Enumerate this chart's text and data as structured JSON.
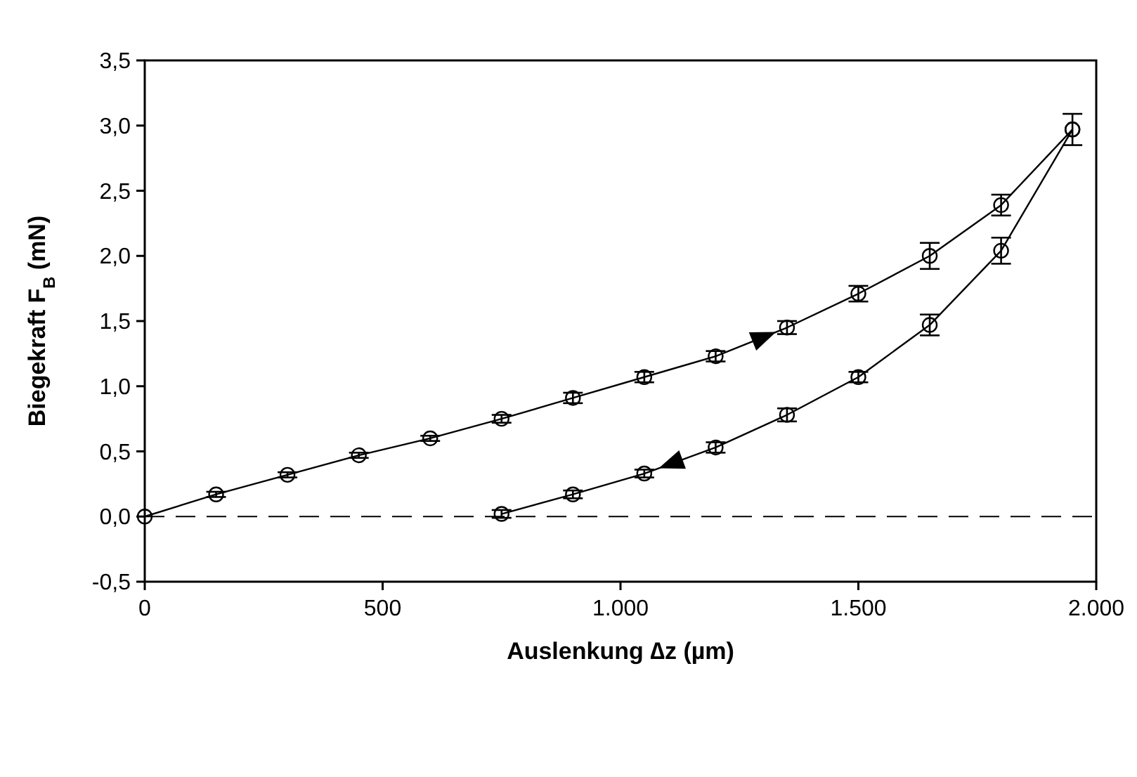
{
  "chart_data": {
    "type": "line",
    "xlabel": "Auslenkung ∆z (µm)",
    "ylabel": "Biegekraft F$_{B}$ (mN)",
    "xlim": [
      0,
      2000
    ],
    "xticks": [
      0,
      500,
      {
        "value": 1000,
        "label": "1.000"
      },
      {
        "value": 1500,
        "label": "1.500"
      },
      {
        "value": 2000,
        "label": "2.000"
      }
    ],
    "ylim": [
      -0.5,
      3.5
    ],
    "yticks": [
      {
        "value": -0.5,
        "label": "-0,5"
      },
      {
        "value": 0,
        "label": "0,0"
      },
      {
        "value": 0.5,
        "label": "0,5"
      },
      {
        "value": 1,
        "label": "1,0"
      },
      {
        "value": 1.5,
        "label": "1,5"
      },
      {
        "value": 2,
        "label": "2,0"
      },
      {
        "value": 2.5,
        "label": "2,5"
      },
      {
        "value": 3,
        "label": "3,0"
      },
      {
        "value": 3.5,
        "label": "3,5"
      }
    ],
    "grid": false,
    "marker": "circle",
    "line_style": "solid",
    "ref_lines": [
      {
        "axis": "y",
        "value": 0,
        "line_style": "dashed",
        "color": "#000000"
      }
    ],
    "series": [
      {
        "color": "#000000",
        "x": [
          0,
          150,
          300,
          450,
          600,
          750,
          900,
          1050,
          1200,
          1350,
          1500,
          1650,
          1800,
          1950
        ],
        "values": [
          0,
          0.17,
          0.32,
          0.47,
          0.6,
          0.75,
          0.91,
          1.07,
          1.23,
          1.45,
          1.71,
          2.0,
          2.39,
          2.97
        ],
        "errors": [
          null,
          0.02,
          0.02,
          0.02,
          0.02,
          0.03,
          0.04,
          0.04,
          0.04,
          0.05,
          0.06,
          0.1,
          0.08,
          0.12
        ]
      },
      {
        "color": "#000000",
        "x": [
          750,
          900,
          1050,
          1200,
          1350,
          1500,
          1650,
          1800,
          1950
        ],
        "values": [
          0.02,
          0.17,
          0.33,
          0.53,
          0.78,
          1.07,
          1.47,
          2.04,
          2.97
        ],
        "errors": [
          0.03,
          0.03,
          0.03,
          0.04,
          0.05,
          0.04,
          0.08,
          0.1,
          null
        ]
      }
    ]
  }
}
